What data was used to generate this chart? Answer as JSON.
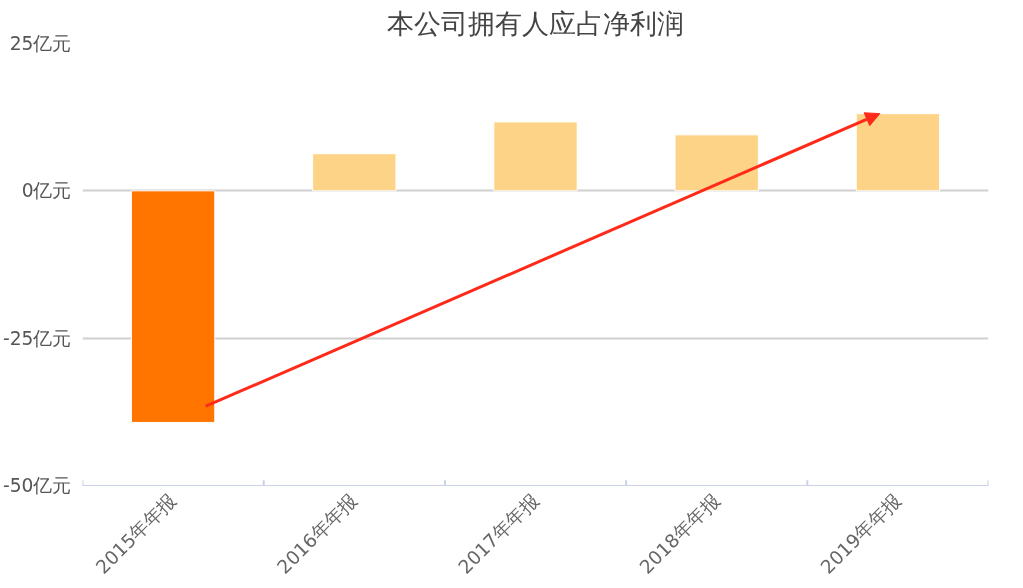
{
  "chart_data": {
    "type": "bar",
    "title": "本公司拥有人应占净利润",
    "categories": [
      "2015年年报",
      "2016年年报",
      "2017年年报",
      "2018年年报",
      "2019年年报"
    ],
    "values": [
      -39.3,
      6.3,
      11.7,
      9.5,
      13.1
    ],
    "colors": [
      "#ff7500",
      "#fdd388",
      "#fdd388",
      "#fdd388",
      "#fdd388"
    ],
    "ylim": [
      -50,
      25
    ],
    "yticks": [
      {
        "value": -50,
        "label": "-50亿元"
      },
      {
        "value": -25,
        "label": "-25亿元"
      },
      {
        "value": 0,
        "label": "0亿元"
      },
      {
        "value": 25,
        "label": "25亿元"
      }
    ],
    "grid": "y"
  }
}
